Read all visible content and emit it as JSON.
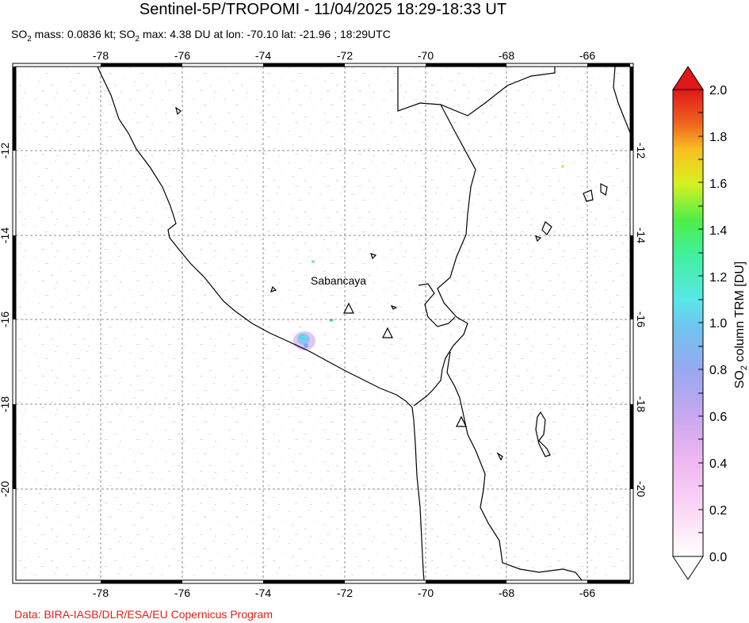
{
  "title": "Sentinel-5P/TROPOMI - 11/04/2025 18:29-18:33 UT",
  "subtitle": {
    "p1": "SO",
    "s1": "2",
    "p2": " mass: 0.0836 kt; SO",
    "s2": "2",
    "p3": " max: 4.38 DU at lon: -70.10 lat: -21.96 ; 18:29UTC"
  },
  "credit": "Data: BIRA-IASB/DLR/ESA/EU Copernicus Program",
  "map": {
    "lon_ticks": [
      "-78",
      "-76",
      "-74",
      "-72",
      "-70",
      "-68",
      "-66"
    ],
    "lat_ticks": [
      "-12",
      "-14",
      "-16",
      "-18",
      "-20"
    ],
    "volcano_label": "Sabancaya",
    "colors": {
      "land_line": "#000000",
      "grid": "#808080",
      "frame": "#000000"
    }
  },
  "colorbar": {
    "title_prefix": "SO",
    "title_sub": "2",
    "title_suffix": " column TRM [DU]",
    "tick_labels": [
      "2.0",
      "1.8",
      "1.6",
      "1.4",
      "1.2",
      "1.0",
      "0.8",
      "0.6",
      "0.4",
      "0.2",
      "0.0"
    ],
    "colors": [
      "#ffffff",
      "#f7c8f0",
      "#d9b0f0",
      "#a8a6f0",
      "#7fb8f0",
      "#60e0f0",
      "#40f0a0",
      "#60f040",
      "#c0f020",
      "#f8e020",
      "#f8a020",
      "#f05020",
      "#e01818"
    ]
  }
}
